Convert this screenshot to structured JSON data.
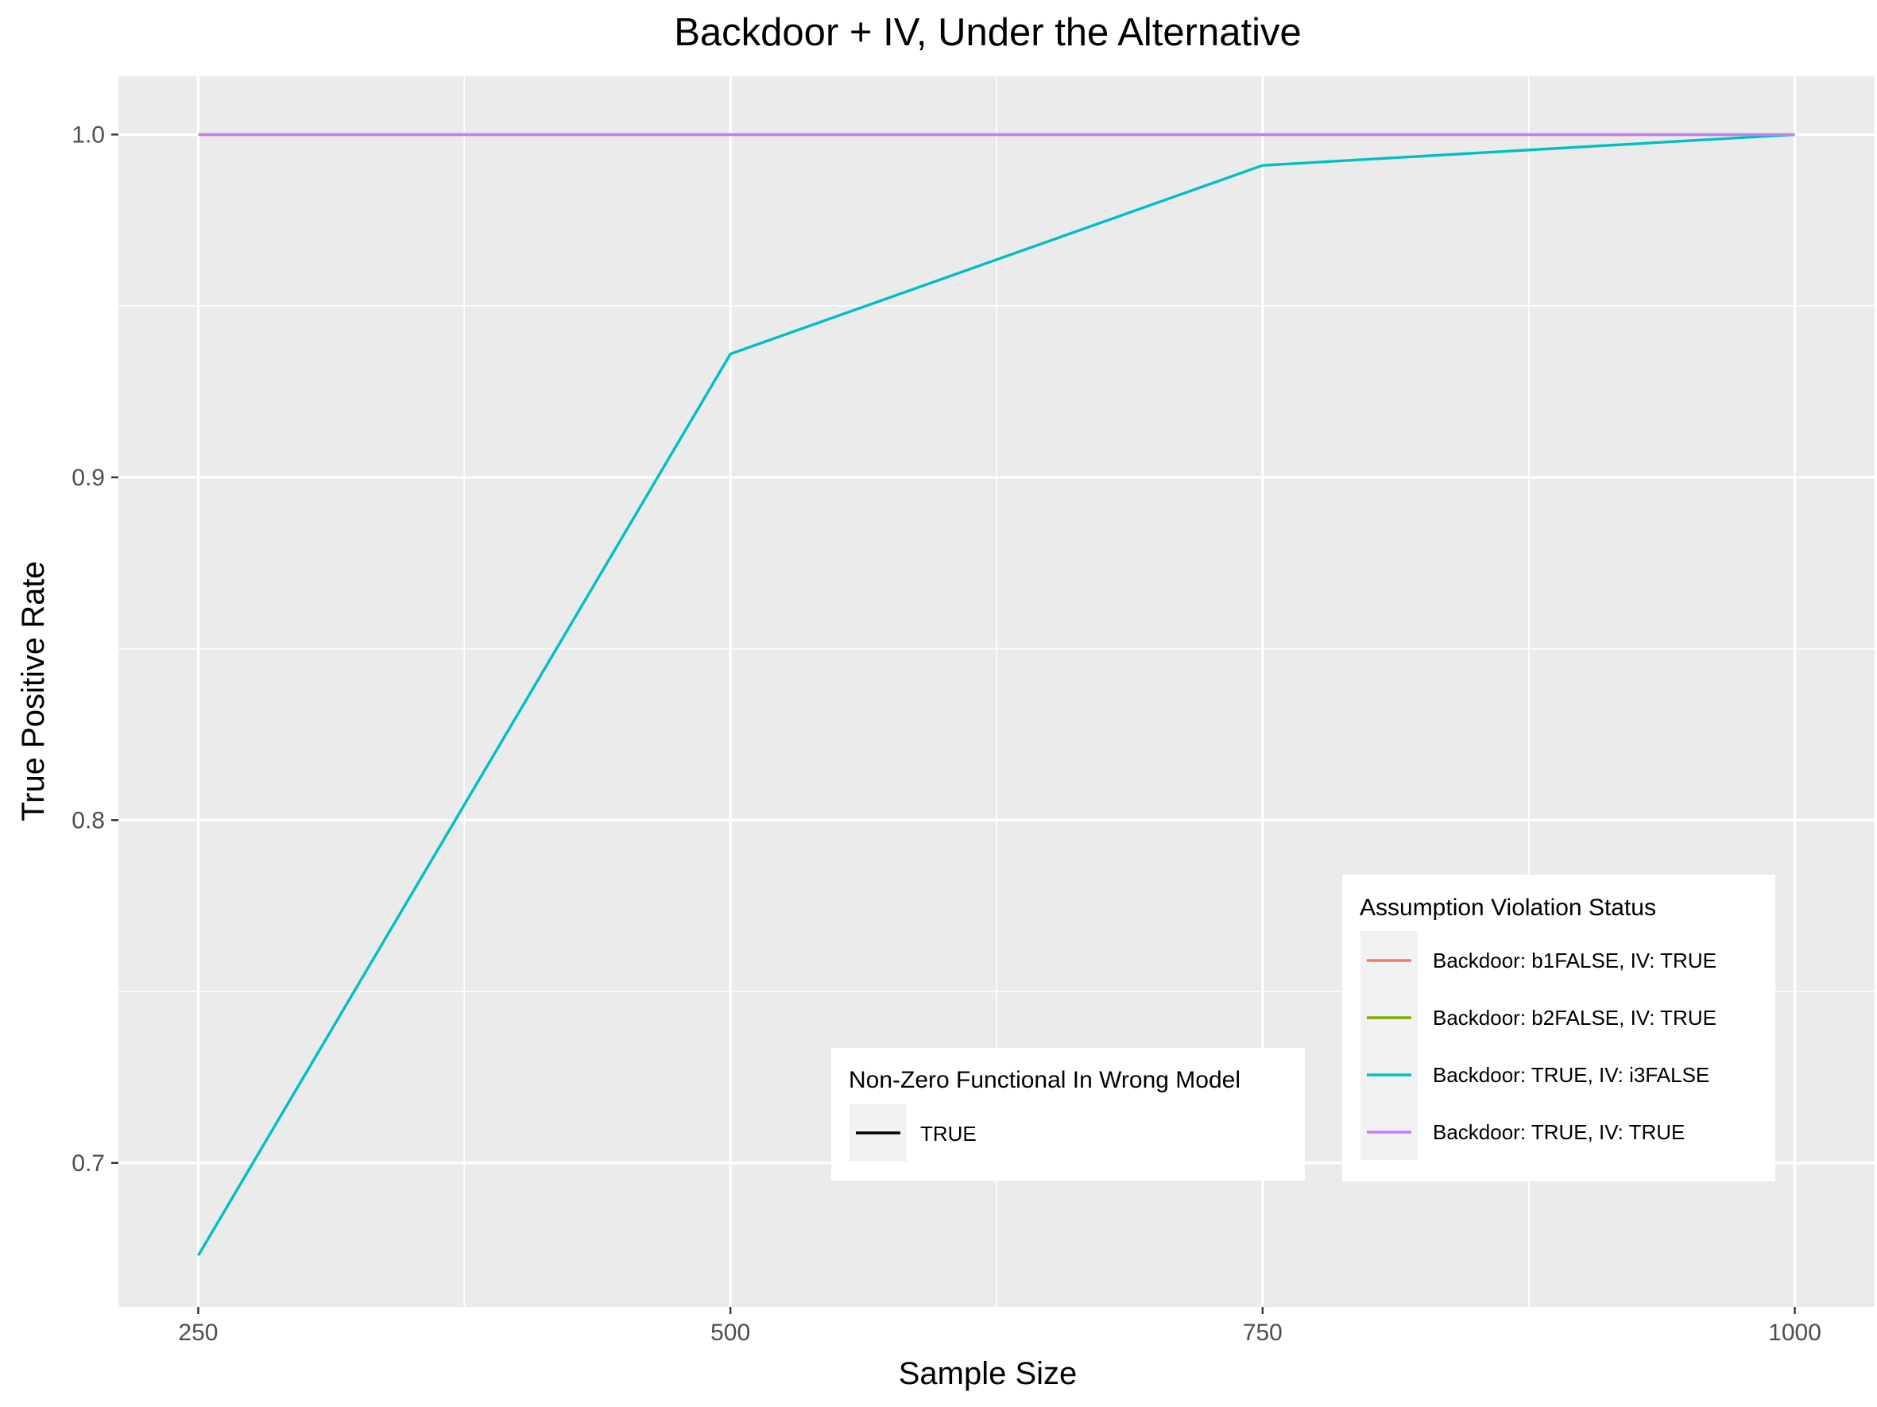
{
  "chart_data": {
    "type": "line",
    "title": "Backdoor + IV, Under the Alternative",
    "xlabel": "Sample Size",
    "ylabel": "True Positive Rate",
    "x": [
      250,
      500,
      750,
      1000
    ],
    "x_ticks": [
      "250",
      "500",
      "750",
      "1000"
    ],
    "y_ticks": [
      "0.7",
      "0.8",
      "0.9",
      "1.0"
    ],
    "xlim": [
      212.5,
      1037.5
    ],
    "ylim": [
      0.658,
      1.017
    ],
    "grid": true,
    "legend_placement": "bottom-right",
    "legends": [
      {
        "title": "Non-Zero Functional In Wrong Model",
        "entries": [
          {
            "label": "TRUE",
            "color": "#000000"
          }
        ]
      },
      {
        "title": "Assumption Violation Status",
        "entries": [
          {
            "label": "Backdoor: b1FALSE, IV: TRUE",
            "color": "#F8766D"
          },
          {
            "label": "Backdoor: b2FALSE, IV: TRUE",
            "color": "#7CAE00"
          },
          {
            "label": "Backdoor: TRUE, IV: i3FALSE",
            "color": "#00BFC4"
          },
          {
            "label": "Backdoor: TRUE, IV: TRUE",
            "color": "#C77CFF"
          }
        ]
      }
    ],
    "series": [
      {
        "values": [
          1.0,
          1.0,
          1.0,
          1.0
        ],
        "color": "#F8766D"
      },
      {
        "values": [
          1.0,
          1.0,
          1.0,
          1.0
        ],
        "color": "#7CAE00"
      },
      {
        "values": [
          0.673,
          0.936,
          0.991,
          1.0
        ],
        "color": "#00BFC4"
      },
      {
        "values": [
          1.0,
          1.0,
          1.0,
          1.0
        ],
        "color": "#C77CFF"
      }
    ]
  }
}
